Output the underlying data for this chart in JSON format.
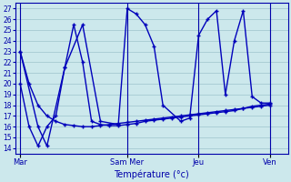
{
  "xlabel": "Température (°c)",
  "background_color": "#cce8ec",
  "line_color": "#0000bb",
  "grid_color": "#9dc4cc",
  "spine_color": "#0000aa",
  "xtick_labels": [
    "Mar",
    "Sam\nMer",
    "Jeu",
    "Ven"
  ],
  "xtick_positions": [
    0,
    12,
    20,
    28
  ],
  "xlim": [
    -0.5,
    30
  ],
  "ylim": [
    13.5,
    27.5
  ],
  "yticks": [
    14,
    15,
    16,
    17,
    18,
    19,
    20,
    21,
    22,
    23,
    24,
    25,
    26,
    27
  ],
  "vlines": [
    0,
    12,
    20,
    28
  ],
  "line1_x": [
    0,
    1,
    2,
    3,
    4,
    5,
    6,
    7,
    8,
    9,
    10,
    11,
    12,
    13,
    14,
    15,
    16,
    17,
    18,
    19,
    20,
    21,
    22,
    23,
    24,
    25,
    26,
    27,
    28,
    29
  ],
  "line1_y": [
    23,
    20,
    18,
    17,
    16.5,
    16.2,
    16.1,
    16.0,
    16.0,
    16.1,
    16.2,
    16.3,
    16.4,
    16.5,
    16.6,
    16.7,
    16.8,
    16.9,
    17.0,
    17.1,
    17.2,
    17.3,
    17.4,
    17.5,
    17.6,
    17.7,
    17.8,
    17.9,
    18.0,
    18.1
  ],
  "line2_x": [
    0,
    1,
    2,
    3,
    4,
    5,
    6,
    7,
    8,
    9,
    10,
    11,
    12,
    13,
    14,
    15,
    16,
    17,
    18,
    19,
    20,
    21,
    22,
    23,
    24,
    25,
    26,
    27,
    28,
    29
  ],
  "line2_y": [
    20,
    16,
    14.2,
    16.0,
    17.0,
    21.5,
    25.5,
    22.0,
    16.5,
    16.2,
    16.1,
    16.1,
    16.2,
    16.3,
    16.5,
    16.6,
    16.7,
    16.8,
    16.9,
    17.0,
    17.1,
    17.2,
    17.3,
    17.4,
    17.5,
    17.7,
    17.9,
    18.0,
    18.1,
    18.2
  ],
  "line3_x": [
    0,
    2,
    3,
    5,
    7,
    9,
    11,
    12,
    13,
    14,
    15,
    16,
    18,
    19,
    20,
    21,
    22,
    23,
    24,
    25,
    26,
    27,
    28,
    29
  ],
  "line3_y": [
    23,
    16,
    14.2,
    21.5,
    25.5,
    16.5,
    16.2,
    27,
    26.5,
    25.5,
    23.5,
    18.0,
    16.5,
    16.8,
    24.5,
    26,
    26.8,
    19.0,
    24,
    26.8,
    18.8,
    18.2,
    18.2,
    18.2
  ]
}
